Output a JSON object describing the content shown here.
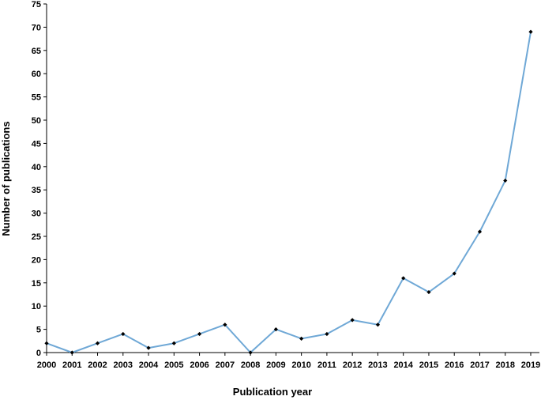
{
  "chart_data": {
    "type": "line",
    "xlabel": "Publication year",
    "ylabel": "Number of publications",
    "ylim": [
      0,
      75
    ],
    "y_ticks": [
      0,
      5,
      10,
      15,
      20,
      25,
      30,
      35,
      40,
      45,
      50,
      55,
      60,
      65,
      70,
      75
    ],
    "categories": [
      "2000",
      "2001",
      "2002",
      "2003",
      "2004",
      "2005",
      "2006",
      "2007",
      "2008",
      "2009",
      "2010",
      "2011",
      "2012",
      "2013",
      "2014",
      "2015",
      "2016",
      "2017",
      "2018",
      "2019"
    ],
    "series": [
      {
        "values": [
          2,
          0,
          2,
          4,
          1,
          2,
          4,
          6,
          0,
          5,
          3,
          4,
          7,
          6,
          16,
          13,
          17,
          26,
          37,
          69
        ]
      }
    ],
    "grid": false,
    "legend": "none",
    "line_color": "#6fa8d6",
    "marker_color": "#000000"
  }
}
